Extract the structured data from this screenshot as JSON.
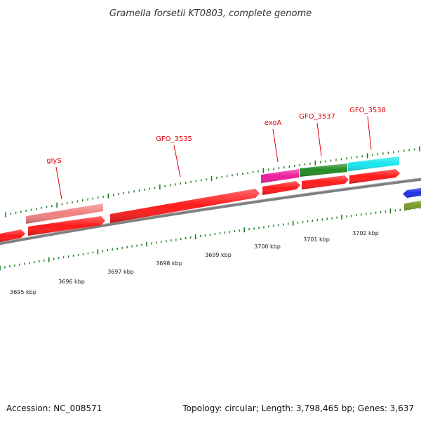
{
  "title": "Gramella forsetii KT0803, complete genome",
  "footer": {
    "accession": "Accession: NC_008571",
    "summary": "Topology: circular; Length: 3,798,465 bp; Genes: 3,637"
  },
  "gene_labels": [
    {
      "name": "glyS"
    },
    {
      "name": "GFO_3535"
    },
    {
      "name": "exoA"
    },
    {
      "name": "GFO_3537"
    },
    {
      "name": "GFO_3538"
    }
  ],
  "scale_labels": [
    "3695 kbp",
    "3696 kbp",
    "3697 kbp",
    "3698 kbp",
    "3699 kbp",
    "3700 kbp",
    "3701 kbp",
    "3702 kbp"
  ],
  "colors": {
    "backbone": "#7f7f7f",
    "tick": "#1a7a1a",
    "label": "#e0000c",
    "cds": "#ff1a1a",
    "glyS": "#f08080",
    "exoA": "#ee1e9c",
    "GFO_3537": "#228b22",
    "GFO_3538": "#19e6f0",
    "blue_feature": "#1e32e6",
    "olive_feature": "#7a9a2a"
  }
}
